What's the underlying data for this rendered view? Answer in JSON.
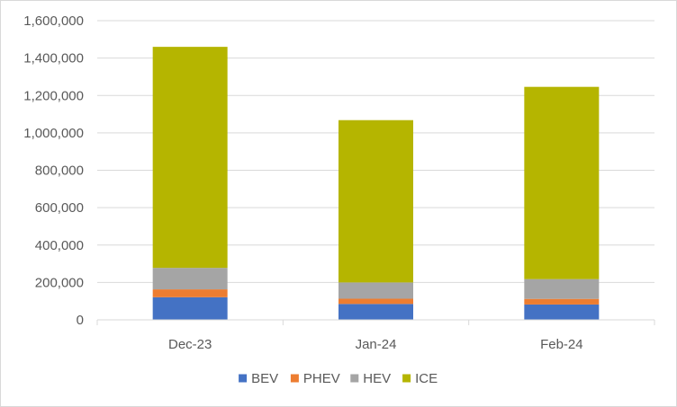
{
  "chart_data": {
    "type": "bar",
    "stacked": true,
    "categories": [
      "Dec-23",
      "Jan-24",
      "Feb-24"
    ],
    "series": [
      {
        "name": "BEV",
        "color": "#4472C4",
        "values": [
          121000,
          85000,
          82000
        ]
      },
      {
        "name": "PHEV",
        "color": "#ED7D31",
        "values": [
          42000,
          28000,
          30000
        ]
      },
      {
        "name": "HEV",
        "color": "#A5A5A5",
        "values": [
          115000,
          87000,
          106000
        ]
      },
      {
        "name": "ICE",
        "color": "#B5B500",
        "values": [
          1182000,
          868000,
          1028000
        ]
      }
    ],
    "ylim": [
      0,
      1600000
    ],
    "yticks": [
      "0",
      "200,000",
      "400,000",
      "600,000",
      "800,000",
      "1,000,000",
      "1,200,000",
      "1,400,000",
      "1,600,000"
    ],
    "grid": true,
    "legend_position": "bottom"
  }
}
